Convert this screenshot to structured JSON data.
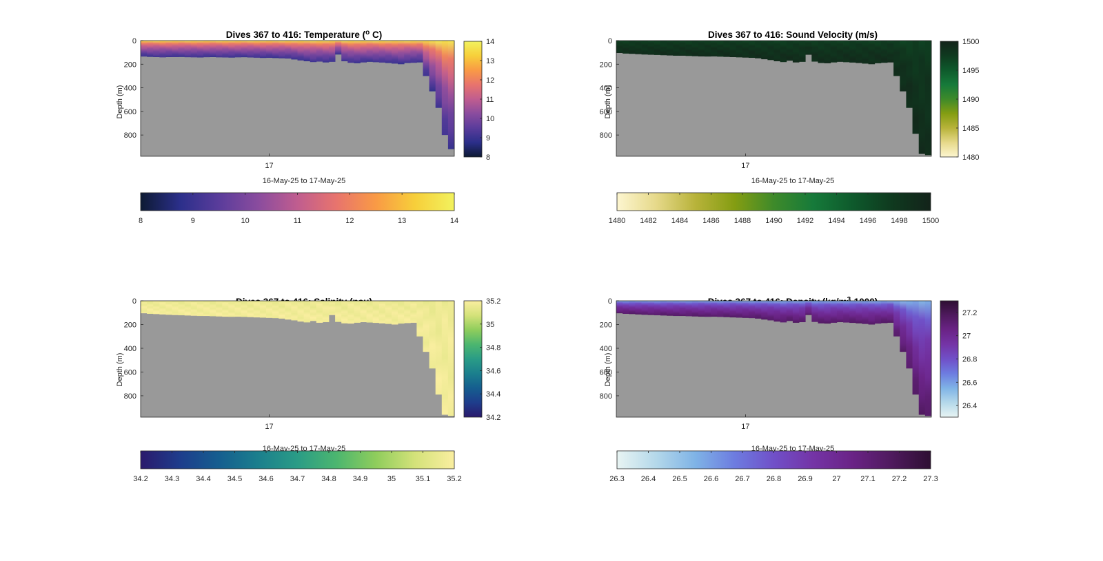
{
  "figure": {
    "background": "#ffffff",
    "no_data_color": "#999999"
  },
  "chart_data": [
    {
      "type": "heatmap",
      "panel": "temperature",
      "title": "Dives 367 to 416: Temperature (",
      "title_sup": "o",
      "title_end": " C)",
      "xlabel": "16-May-25 to 17-May-25",
      "xticks": [
        "17"
      ],
      "ylabel": "Depth (m)",
      "yticks": [
        0,
        200,
        400,
        600,
        800
      ],
      "ylim": [
        0,
        980
      ],
      "dives": [
        367,
        416
      ],
      "clim": [
        8,
        14
      ],
      "colorbar_ticks": [
        8,
        9,
        10,
        11,
        12,
        13,
        14
      ],
      "colormap": [
        "#0d1a33",
        "#2b2f8a",
        "#5a3c9b",
        "#8a4c9e",
        "#c05d8f",
        "#e8746d",
        "#f99a45",
        "#f7cf3a",
        "#f2f25e"
      ],
      "profile_max_depth_m": [
        135,
        138,
        140,
        142,
        140,
        140,
        139,
        141,
        142,
        143,
        141,
        140,
        142,
        143,
        144,
        142,
        141,
        143,
        145,
        147,
        146,
        148,
        150,
        152,
        160,
        168,
        175,
        182,
        178,
        185,
        180,
        118,
        175,
        188,
        192,
        185,
        180,
        183,
        186,
        190,
        195,
        200,
        190,
        188,
        185,
        300,
        430,
        570,
        800,
        920
      ],
      "surface_value": 13.7,
      "deep_value": 9.0
    },
    {
      "type": "heatmap",
      "panel": "sound-velocity",
      "title": "Dives 367 to 416: Sound Velocity (m/s)",
      "xlabel": "16-May-25 to 17-May-25",
      "xticks": [
        "17"
      ],
      "ylabel": "Depth (m)",
      "yticks": [
        0,
        200,
        400,
        600,
        800
      ],
      "ylim": [
        0,
        980
      ],
      "dives": [
        367,
        416
      ],
      "clim": [
        1480,
        1500
      ],
      "colorbar_ticks": [
        1480,
        1485,
        1490,
        1495,
        1500
      ],
      "colorbar_h_ticks": [
        1480,
        1482,
        1484,
        1486,
        1488,
        1490,
        1492,
        1494,
        1496,
        1498,
        1500
      ],
      "colormap": [
        "#fdf6d0",
        "#e6d98a",
        "#b8b33a",
        "#849d12",
        "#3e8a2a",
        "#167a3a",
        "#0e5a2c",
        "#0f3a1f",
        "#13231a"
      ],
      "profile_max_depth_m": [
        105,
        110,
        112,
        115,
        118,
        120,
        122,
        124,
        126,
        128,
        128,
        130,
        132,
        134,
        135,
        134,
        136,
        138,
        140,
        142,
        144,
        146,
        150,
        158,
        165,
        175,
        182,
        170,
        185,
        180,
        120,
        178,
        190,
        192,
        185,
        180,
        183,
        186,
        190,
        195,
        200,
        192,
        188,
        185,
        300,
        430,
        570,
        790,
        960,
        970
      ],
      "surface_value": 1497,
      "deep_value": 1499
    },
    {
      "type": "heatmap",
      "panel": "salinity",
      "title": "Dives 367 to 416: Salinity (psu)",
      "xlabel": "16-May-25 to 17-May-25",
      "xticks": [
        "17"
      ],
      "ylabel": "Depth (m)",
      "yticks": [
        0,
        200,
        400,
        600,
        800
      ],
      "ylim": [
        0,
        980
      ],
      "dives": [
        367,
        416
      ],
      "clim": [
        34.2,
        35.2
      ],
      "colorbar_ticks": [
        34.2,
        34.4,
        34.6,
        34.8,
        35,
        35.2
      ],
      "colorbar_h_ticks": [
        34.2,
        34.3,
        34.4,
        34.5,
        34.6,
        34.7,
        34.8,
        34.9,
        35,
        35.1,
        35.2
      ],
      "colormap": [
        "#2a1a6c",
        "#1e3d8c",
        "#155e8f",
        "#1b7f8d",
        "#2a9c86",
        "#4cb66f",
        "#8fcd5c",
        "#d4e27a",
        "#faeea0"
      ],
      "profile_max_depth_m": [
        105,
        110,
        112,
        115,
        118,
        120,
        122,
        124,
        126,
        128,
        128,
        130,
        132,
        134,
        135,
        134,
        136,
        138,
        140,
        142,
        144,
        146,
        150,
        158,
        165,
        175,
        182,
        170,
        185,
        180,
        120,
        178,
        190,
        192,
        185,
        180,
        183,
        186,
        190,
        195,
        200,
        192,
        188,
        185,
        300,
        430,
        570,
        790,
        960,
        970
      ],
      "surface_value": 35.15,
      "deep_value": 35.18
    },
    {
      "type": "heatmap",
      "panel": "density",
      "title": "Dives 367 to 416: Density (kg/m",
      "title_sup": "3",
      "title_end": "-1000)",
      "xlabel": "16-May-25 to 17-May-25",
      "xticks": [
        "17"
      ],
      "ylabel": "Depth (m)",
      "yticks": [
        0,
        200,
        400,
        600,
        800
      ],
      "ylim": [
        0,
        980
      ],
      "dives": [
        367,
        416
      ],
      "clim": [
        26.3,
        27.3
      ],
      "colorbar_ticks": [
        26.4,
        26.6,
        26.8,
        27,
        27.2
      ],
      "colorbar_h_ticks": [
        26.3,
        26.4,
        26.5,
        26.6,
        26.7,
        26.8,
        26.9,
        27,
        27.1,
        27.2,
        27.3
      ],
      "colormap": [
        "#e8f4f3",
        "#b4d8ea",
        "#7fb3e6",
        "#6d7ce0",
        "#7050c8",
        "#7434a6",
        "#6a2386",
        "#4f1a5e",
        "#2e0f33"
      ],
      "profile_max_depth_m": [
        105,
        110,
        112,
        115,
        118,
        120,
        122,
        124,
        126,
        128,
        128,
        130,
        132,
        134,
        135,
        134,
        136,
        138,
        140,
        142,
        144,
        146,
        150,
        158,
        165,
        175,
        182,
        170,
        185,
        180,
        120,
        178,
        190,
        192,
        185,
        180,
        183,
        186,
        190,
        195,
        200,
        192,
        188,
        185,
        300,
        430,
        570,
        790,
        960,
        970
      ],
      "surface_value": 26.55,
      "deep_value": 27.15
    }
  ]
}
